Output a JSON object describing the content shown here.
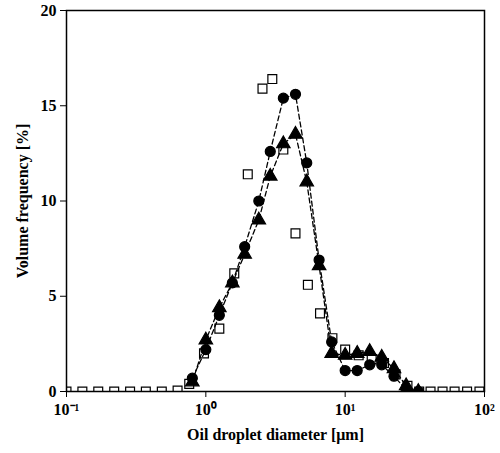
{
  "chart_data": {
    "type": "scatter",
    "xlabel": "Oil droplet diameter [μm]",
    "ylabel": "Volume frequency [%]",
    "log": "x",
    "xlim": [
      0.1,
      100
    ],
    "xticks": [
      {
        "value": 0.1,
        "label": "10⁻¹"
      },
      {
        "value": 1,
        "label": "10⁰"
      },
      {
        "value": 10,
        "label": "10¹"
      },
      {
        "value": 100,
        "label": "10²"
      }
    ],
    "ylim": [
      0,
      20
    ],
    "yticks": [
      0,
      5,
      10,
      15,
      20
    ],
    "series": [
      {
        "color": "#000000",
        "marker": "square_open",
        "line_style": "none",
        "x": [
          0.1,
          0.13,
          0.169,
          0.22,
          0.286,
          0.371,
          0.483,
          0.627,
          0.76,
          0.97,
          1.25,
          1.6,
          2.0,
          2.55,
          3.0,
          3.6,
          4.4,
          5.4,
          6.6,
          8.1,
          10,
          12.5,
          15.5,
          19,
          23,
          28,
          34,
          41,
          50,
          61,
          75,
          92
        ],
        "values": [
          0,
          0,
          0,
          0,
          0,
          0,
          0,
          0.05,
          0.4,
          2.0,
          3.3,
          6.2,
          11.4,
          15.9,
          16.4,
          12.7,
          8.3,
          5.6,
          4.1,
          2.8,
          2.2,
          1.9,
          1.7,
          1.5,
          0.9,
          0.3,
          0,
          0,
          0,
          0,
          0,
          0
        ]
      },
      {
        "color": "#000000",
        "marker": "circle",
        "line_style": "dashed",
        "x": [
          0.8,
          1.0,
          1.25,
          1.55,
          1.9,
          2.4,
          2.9,
          3.6,
          4.4,
          5.3,
          6.5,
          8.0,
          10,
          12.2,
          15,
          18.3,
          22.4,
          27.4,
          33.5
        ],
        "values": [
          0.7,
          2.2,
          4.0,
          5.7,
          7.6,
          10.0,
          12.6,
          15.4,
          15.6,
          12.0,
          6.9,
          2.6,
          1.1,
          1.1,
          1.4,
          1.4,
          0.8,
          0.1,
          0
        ]
      },
      {
        "color": "#000000",
        "marker": "triangle",
        "line_style": "dashed",
        "x": [
          0.8,
          1.0,
          1.25,
          1.55,
          1.9,
          2.4,
          2.9,
          3.6,
          4.4,
          5.3,
          6.5,
          8.0,
          10,
          12.2,
          15,
          18.3,
          22.4,
          27.4,
          33.5
        ],
        "values": [
          0.5,
          2.7,
          4.4,
          5.7,
          7.2,
          9.0,
          11.3,
          13.0,
          13.5,
          11.0,
          6.6,
          2.0,
          1.9,
          2.0,
          2.1,
          1.8,
          1.2,
          0.3,
          0
        ]
      }
    ]
  }
}
